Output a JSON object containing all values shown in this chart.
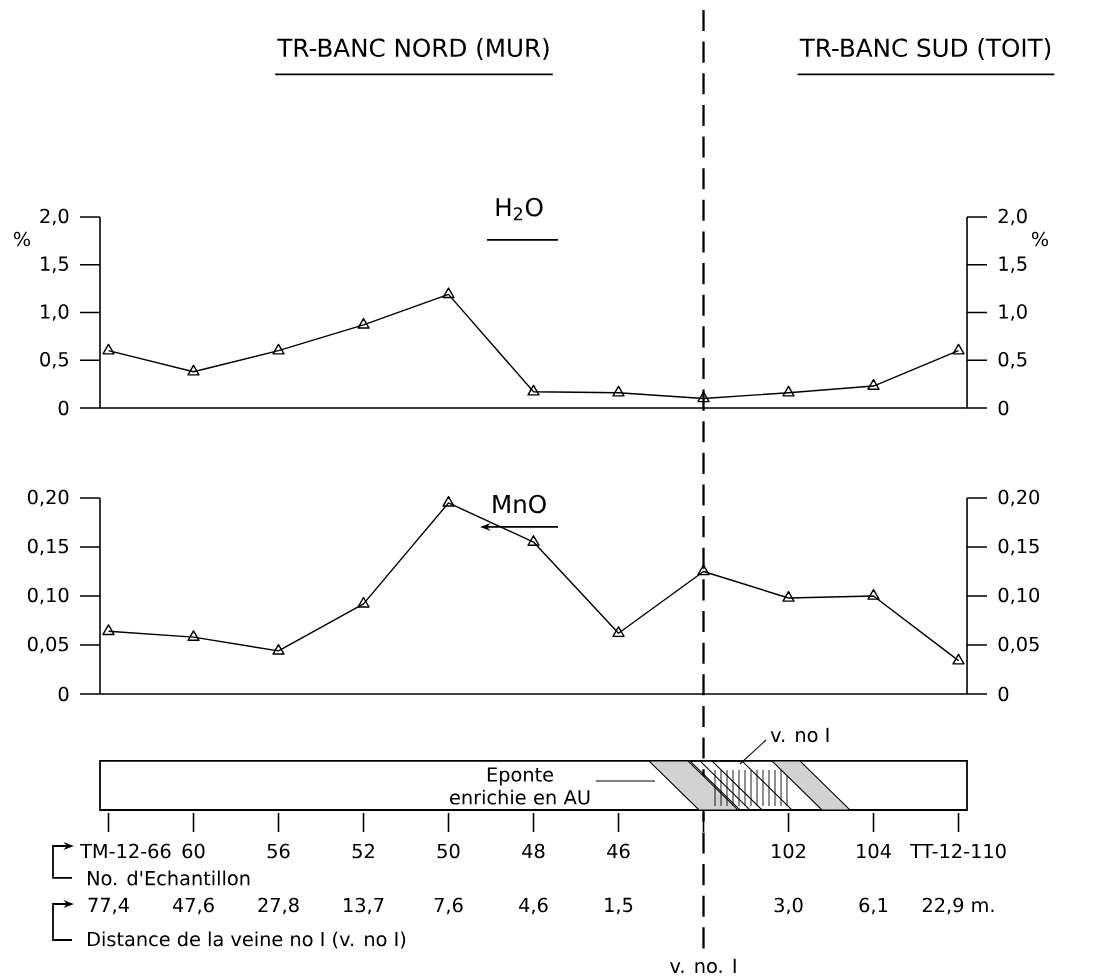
{
  "chart_data": [
    {
      "type": "line",
      "title": "H$_{2}$O",
      "ylabel": "%",
      "y2label": "%",
      "annotations": [
        "TR-BANC NORD (MUR)",
        "TR-BANC SUD (TOIT)"
      ],
      "categories": [
        null,
        null,
        null,
        null,
        null,
        null,
        null,
        null,
        null,
        null,
        null
      ],
      "values": [
        0.6,
        0.38,
        0.6,
        0.87,
        1.19,
        0.17,
        0.16,
        0.1,
        0.16,
        0.23,
        0.6
      ],
      "color": "#000000",
      "marker": "triangle",
      "line_style": "solid",
      "ylim": [
        0,
        2.0
      ],
      "yticks": [
        0,
        {
          "value": 0.5,
          "label": "0,5"
        },
        {
          "value": 1.0,
          "label": "1,0"
        },
        {
          "value": 1.5,
          "label": "1,5"
        },
        {
          "value": 2.0,
          "label": "2,0"
        }
      ],
      "y2lim": [
        0,
        2.0
      ],
      "y2ticks": [
        0,
        {
          "value": 0.5,
          "label": "0,5"
        },
        {
          "value": 1.0,
          "label": "1,0"
        },
        {
          "value": 1.5,
          "label": "1,5"
        },
        {
          "value": 2.0,
          "label": "2,0"
        }
      ],
      "tick_labels": "y"
    },
    {
      "type": "line",
      "title": "MnO",
      "annotations": [
        "TM-12-66",
        "60",
        "56",
        "52",
        "50",
        "48",
        "46",
        "102",
        "104",
        "TT-12-110",
        "77,4",
        "47,6",
        "27,8",
        "13,7",
        "7,6",
        "4,6",
        "1,5",
        "3,0",
        "6,1",
        "22,9 m.",
        "No. d'Echantillon",
        "Distance de la veine no I (v. no I)",
        "v. no. I",
        "Eponte enrichie en AU",
        "v. no I"
      ],
      "categories": [
        null,
        null,
        null,
        null,
        null,
        null,
        null,
        null,
        null,
        null,
        null
      ],
      "values": [
        0.064,
        0.058,
        0.044,
        0.092,
        0.195,
        0.155,
        0.062,
        0.125,
        0.098,
        0.1,
        0.034
      ],
      "color": "#000000",
      "marker": "triangle",
      "line_style": "solid",
      "ylim": [
        0,
        0.2
      ],
      "yticks": [
        0,
        {
          "value": 0.05,
          "label": "0,05"
        },
        {
          "value": 0.1,
          "label": "0,10"
        },
        {
          "value": 0.15,
          "label": "0,15"
        },
        {
          "value": 0.2,
          "label": "0,20"
        }
      ],
      "y2lim": [
        0,
        0.2
      ],
      "y2ticks": [
        0,
        {
          "value": 0.05,
          "label": "0,05"
        },
        {
          "value": 0.1,
          "label": "0,10"
        },
        {
          "value": 0.15,
          "label": "0,15"
        },
        {
          "value": 0.2,
          "label": "0,20"
        }
      ],
      "tick_labels": "y"
    }
  ]
}
